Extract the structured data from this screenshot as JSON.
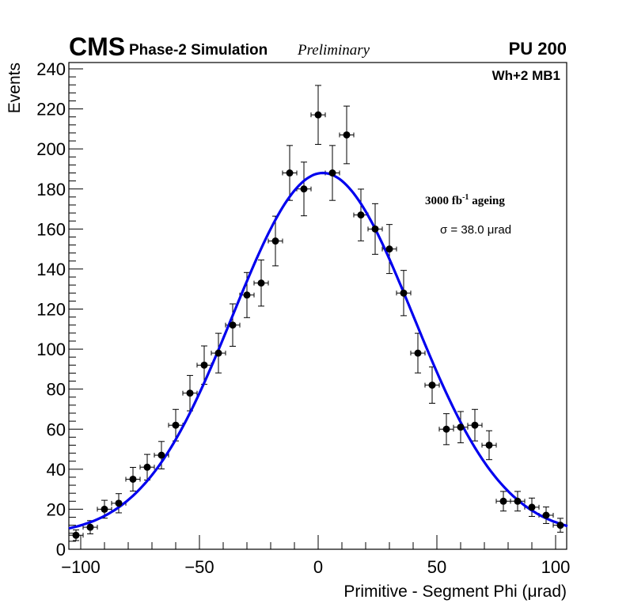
{
  "header": {
    "experiment": "CMS",
    "subtitle": "Phase-2 Simulation",
    "status": "Preliminary",
    "pileup": "PU 200"
  },
  "annotations": {
    "chamber": "Wh+2 MB1",
    "ageing_main": "3000 fb",
    "ageing_sup": "-1",
    "ageing_rest": " ageing",
    "sigma_label": "σ = 38.0 μrad"
  },
  "chart_data": {
    "type": "scatter",
    "title": "",
    "xlabel": "Primitive - Segment Phi (μrad)",
    "ylabel": "Events",
    "xlim": [
      -105,
      105
    ],
    "ylim": [
      0,
      245
    ],
    "x_ticks": [
      -100,
      -50,
      0,
      50,
      100
    ],
    "x_tick_labels": [
      "−100",
      "−50",
      "0",
      "50",
      "100"
    ],
    "y_ticks": [
      0,
      20,
      40,
      60,
      80,
      100,
      120,
      140,
      160,
      180,
      200,
      220,
      240
    ],
    "y_tick_labels": [
      "0",
      "20",
      "40",
      "60",
      "80",
      "100",
      "120",
      "140",
      "160",
      "180",
      "200",
      "220",
      "240"
    ],
    "grid": false,
    "bin_width": 6,
    "series": [
      {
        "name": "data",
        "style": "points-with-errors",
        "color": "#000000",
        "x": [
          -102,
          -96,
          -90,
          -84,
          -78,
          -72,
          -66,
          -60,
          -54,
          -48,
          -42,
          -36,
          -30,
          -24,
          -18,
          -12,
          -6,
          0,
          6,
          12,
          18,
          24,
          30,
          36,
          42,
          48,
          54,
          60,
          66,
          72,
          78,
          84,
          90,
          96,
          102
        ],
        "y": [
          7,
          11,
          20,
          23,
          35,
          41,
          47,
          62,
          78,
          92,
          98,
          112,
          127,
          133,
          154,
          188,
          180,
          217,
          188,
          207,
          167,
          160,
          150,
          128,
          98,
          82,
          60,
          61,
          62,
          52,
          24,
          24,
          21,
          17,
          12
        ]
      },
      {
        "name": "gaussian fit",
        "style": "line",
        "color": "#0000ee",
        "function": "gaussian+constant",
        "amplitude": 181,
        "mean": 2,
        "sigma": 38,
        "constant": 7
      }
    ]
  }
}
